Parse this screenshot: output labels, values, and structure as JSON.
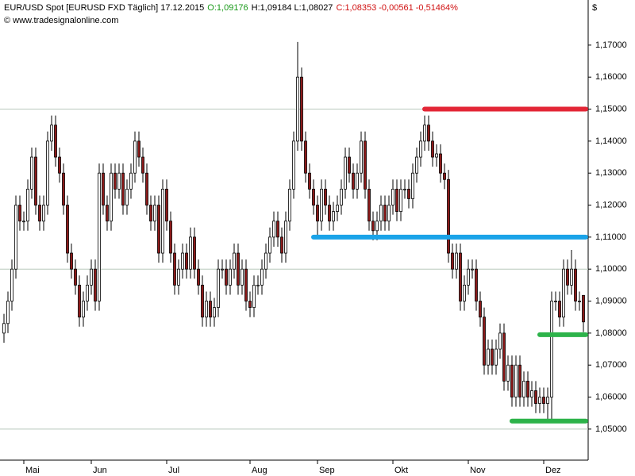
{
  "chart_data": {
    "type": "candlestick",
    "title": "EUR/USD Spot [EURUSD FXD  Täglich] 17.12.2015",
    "quote_open": "O:1,09176",
    "quote_high_low": "H:1,09184 L:1,08027",
    "quote_close": "C:1,08353 -0,00561 -0,51464%",
    "source": "© www.tradesignalonline.com",
    "y_axis_unit": "$",
    "up_color": "#ffffff",
    "down_color": "#8b1a1a",
    "categories": [
      null,
      null,
      null,
      null,
      null,
      "Mai",
      null,
      null,
      null,
      null,
      null,
      null,
      null,
      null,
      null,
      null,
      null,
      null,
      null,
      null,
      null,
      null,
      "Jun",
      null,
      null,
      null,
      null,
      null,
      null,
      null,
      null,
      null,
      null,
      null,
      null,
      null,
      null,
      null,
      null,
      null,
      null,
      "Jul",
      null,
      null,
      null,
      null,
      null,
      null,
      null,
      null,
      null,
      null,
      null,
      null,
      null,
      null,
      null,
      null,
      null,
      null,
      null,
      null,
      "Aug",
      null,
      null,
      null,
      null,
      null,
      null,
      null,
      null,
      null,
      null,
      null,
      null,
      null,
      null,
      null,
      null,
      "Sep",
      null,
      null,
      null,
      null,
      null,
      null,
      null,
      null,
      null,
      null,
      null,
      null,
      null,
      null,
      null,
      null,
      null,
      null,
      "Okt",
      null,
      null,
      null,
      null,
      null,
      null,
      null,
      null,
      null,
      null,
      null,
      null,
      null,
      null,
      null,
      null,
      null,
      null,
      "Nov",
      null,
      null,
      null,
      null,
      null,
      null,
      null,
      null,
      null,
      null,
      null,
      null,
      null,
      null,
      null,
      null,
      null,
      null,
      "Dez",
      null,
      null,
      null,
      null,
      null,
      null,
      null,
      null,
      null,
      null
    ],
    "open": [
      1.08,
      1.083,
      1.09,
      1.1,
      1.12,
      1.115,
      1.115,
      1.125,
      1.135,
      1.12,
      1.115,
      1.12,
      1.14,
      1.145,
      1.135,
      1.13,
      1.12,
      1.105,
      1.1,
      1.095,
      1.085,
      1.09,
      1.095,
      1.1,
      1.09,
      1.13,
      1.12,
      1.115,
      1.13,
      1.125,
      1.13,
      1.12,
      1.125,
      1.13,
      1.14,
      1.135,
      1.13,
      1.12,
      1.115,
      1.12,
      1.105,
      1.125,
      1.115,
      1.105,
      1.095,
      1.1,
      1.105,
      1.1,
      1.11,
      1.1,
      1.095,
      1.085,
      1.09,
      1.085,
      1.088,
      1.1,
      1.1,
      1.095,
      1.1,
      1.105,
      1.095,
      1.1,
      1.09,
      1.088,
      1.095,
      1.095,
      1.1,
      1.105,
      1.11,
      1.115,
      1.11,
      1.105,
      1.115,
      1.125,
      1.14,
      1.16,
      1.14,
      1.13,
      1.125,
      1.12,
      1.115,
      1.125,
      1.12,
      1.115,
      1.118,
      1.12,
      1.125,
      1.135,
      1.13,
      1.125,
      1.13,
      1.14,
      1.125,
      1.115,
      1.112,
      1.115,
      1.12,
      1.115,
      1.12,
      1.125,
      1.118,
      1.125,
      1.125,
      1.122,
      1.13,
      1.135,
      1.14,
      1.145,
      1.14,
      1.135,
      1.136,
      1.13,
      1.128,
      1.105,
      1.1,
      1.105,
      1.09,
      1.095,
      1.1,
      1.1,
      1.09,
      1.085,
      1.07,
      1.075,
      1.07,
      1.075,
      1.08,
      1.065,
      1.07,
      1.06,
      1.07,
      1.06,
      1.065,
      1.06,
      1.062,
      1.058,
      1.06,
      1.058,
      1.06,
      1.09,
      1.09,
      1.085,
      1.1,
      1.095,
      1.1,
      1.09,
      1.0918
    ],
    "high": [
      1.086,
      1.093,
      1.103,
      1.123,
      1.123,
      1.118,
      1.128,
      1.138,
      1.138,
      1.123,
      1.123,
      1.143,
      1.148,
      1.148,
      1.138,
      1.133,
      1.123,
      1.108,
      1.103,
      1.098,
      1.093,
      1.098,
      1.103,
      1.103,
      1.133,
      1.133,
      1.123,
      1.133,
      1.133,
      1.133,
      1.133,
      1.128,
      1.133,
      1.143,
      1.143,
      1.138,
      1.133,
      1.123,
      1.123,
      1.123,
      1.128,
      1.128,
      1.118,
      1.108,
      1.103,
      1.108,
      1.108,
      1.113,
      1.113,
      1.103,
      1.098,
      1.093,
      1.093,
      1.091,
      1.103,
      1.103,
      1.103,
      1.103,
      1.108,
      1.108,
      1.103,
      1.103,
      1.093,
      1.098,
      1.098,
      1.103,
      1.108,
      1.113,
      1.118,
      1.118,
      1.113,
      1.118,
      1.128,
      1.143,
      1.171,
      1.163,
      1.143,
      1.133,
      1.128,
      1.123,
      1.128,
      1.128,
      1.123,
      1.121,
      1.123,
      1.128,
      1.138,
      1.138,
      1.133,
      1.133,
      1.143,
      1.143,
      1.128,
      1.118,
      1.118,
      1.123,
      1.123,
      1.123,
      1.128,
      1.128,
      1.128,
      1.128,
      1.128,
      1.133,
      1.138,
      1.143,
      1.148,
      1.148,
      1.143,
      1.139,
      1.139,
      1.133,
      1.131,
      1.108,
      1.108,
      1.108,
      1.098,
      1.103,
      1.103,
      1.103,
      1.093,
      1.088,
      1.078,
      1.078,
      1.078,
      1.083,
      1.083,
      1.073,
      1.073,
      1.073,
      1.073,
      1.068,
      1.068,
      1.065,
      1.065,
      1.063,
      1.063,
      1.063,
      1.093,
      1.093,
      1.093,
      1.103,
      1.103,
      1.106,
      1.103,
      1.093,
      1.0918
    ],
    "low": [
      1.077,
      1.08,
      1.087,
      1.097,
      1.112,
      1.112,
      1.112,
      1.122,
      1.117,
      1.112,
      1.112,
      1.117,
      1.137,
      1.132,
      1.127,
      1.117,
      1.102,
      1.097,
      1.092,
      1.082,
      1.082,
      1.087,
      1.092,
      1.087,
      1.087,
      1.117,
      1.112,
      1.112,
      1.122,
      1.122,
      1.117,
      1.117,
      1.122,
      1.127,
      1.132,
      1.127,
      1.117,
      1.112,
      1.112,
      1.102,
      1.102,
      1.112,
      1.102,
      1.092,
      1.092,
      1.097,
      1.097,
      1.097,
      1.097,
      1.092,
      1.082,
      1.082,
      1.082,
      1.082,
      1.085,
      1.097,
      1.092,
      1.092,
      1.097,
      1.092,
      1.092,
      1.087,
      1.085,
      1.085,
      1.092,
      1.092,
      1.097,
      1.102,
      1.107,
      1.107,
      1.102,
      1.102,
      1.112,
      1.122,
      1.137,
      1.137,
      1.127,
      1.122,
      1.117,
      1.11,
      1.112,
      1.117,
      1.112,
      1.112,
      1.115,
      1.117,
      1.122,
      1.127,
      1.122,
      1.122,
      1.127,
      1.122,
      1.112,
      1.109,
      1.109,
      1.112,
      1.112,
      1.112,
      1.117,
      1.115,
      1.115,
      1.122,
      1.119,
      1.119,
      1.127,
      1.132,
      1.137,
      1.137,
      1.132,
      1.132,
      1.127,
      1.125,
      1.102,
      1.097,
      1.097,
      1.087,
      1.087,
      1.092,
      1.097,
      1.087,
      1.082,
      1.067,
      1.067,
      1.067,
      1.067,
      1.072,
      1.062,
      1.062,
      1.057,
      1.057,
      1.057,
      1.057,
      1.057,
      1.057,
      1.055,
      1.055,
      1.055,
      1.052,
      1.053,
      1.087,
      1.082,
      1.082,
      1.092,
      1.092,
      1.087,
      1.087,
      1.0803
    ],
    "close": [
      1.083,
      1.09,
      1.1,
      1.12,
      1.115,
      1.115,
      1.125,
      1.135,
      1.12,
      1.115,
      1.12,
      1.14,
      1.145,
      1.135,
      1.13,
      1.12,
      1.105,
      1.1,
      1.095,
      1.085,
      1.09,
      1.095,
      1.1,
      1.09,
      1.13,
      1.12,
      1.115,
      1.13,
      1.125,
      1.13,
      1.12,
      1.125,
      1.13,
      1.14,
      1.135,
      1.13,
      1.12,
      1.115,
      1.12,
      1.105,
      1.125,
      1.115,
      1.105,
      1.095,
      1.1,
      1.105,
      1.1,
      1.11,
      1.1,
      1.095,
      1.085,
      1.09,
      1.085,
      1.088,
      1.1,
      1.1,
      1.095,
      1.1,
      1.105,
      1.095,
      1.1,
      1.09,
      1.088,
      1.095,
      1.095,
      1.1,
      1.105,
      1.11,
      1.115,
      1.11,
      1.105,
      1.115,
      1.125,
      1.14,
      1.16,
      1.14,
      1.13,
      1.125,
      1.12,
      1.115,
      1.125,
      1.12,
      1.115,
      1.118,
      1.12,
      1.125,
      1.135,
      1.13,
      1.125,
      1.13,
      1.14,
      1.125,
      1.115,
      1.112,
      1.115,
      1.12,
      1.115,
      1.12,
      1.125,
      1.118,
      1.125,
      1.125,
      1.122,
      1.13,
      1.135,
      1.14,
      1.145,
      1.14,
      1.135,
      1.136,
      1.13,
      1.128,
      1.105,
      1.1,
      1.105,
      1.09,
      1.095,
      1.1,
      1.1,
      1.09,
      1.085,
      1.07,
      1.075,
      1.07,
      1.075,
      1.08,
      1.065,
      1.07,
      1.06,
      1.07,
      1.06,
      1.065,
      1.06,
      1.062,
      1.058,
      1.06,
      1.058,
      1.06,
      1.09,
      1.09,
      1.085,
      1.1,
      1.095,
      1.1,
      1.09,
      1.09,
      1.0835
    ],
    "levels": [
      {
        "value": 1.15,
        "color": "#e32636",
        "from_bar": 106
      },
      {
        "value": 1.11,
        "color": "#1aa3e8",
        "from_bar": 78
      },
      {
        "value": 1.0795,
        "color": "#2db34a",
        "from_bar": 135
      },
      {
        "value": 1.0525,
        "color": "#2db34a",
        "from_bar": 128
      }
    ],
    "ylim": [
      1.0403,
      1.1841
    ],
    "yticks": [
      {
        "value": 1.05,
        "label": "1,05000"
      },
      {
        "value": 1.06,
        "label": "1,06000"
      },
      {
        "value": 1.07,
        "label": "1,07000"
      },
      {
        "value": 1.08,
        "label": "1,08000"
      },
      {
        "value": 1.09,
        "label": "1,09000"
      },
      {
        "value": 1.1,
        "label": "1,10000"
      },
      {
        "value": 1.11,
        "label": "1,11000"
      },
      {
        "value": 1.12,
        "label": "1,12000"
      },
      {
        "value": 1.13,
        "label": "1,13000"
      },
      {
        "value": 1.14,
        "label": "1,14000"
      },
      {
        "value": 1.15,
        "label": "1,15000"
      },
      {
        "value": 1.16,
        "label": "1,16000"
      },
      {
        "value": 1.17,
        "label": "1,17000"
      }
    ],
    "grid_values": [
      1.05,
      1.1,
      1.15
    ]
  }
}
